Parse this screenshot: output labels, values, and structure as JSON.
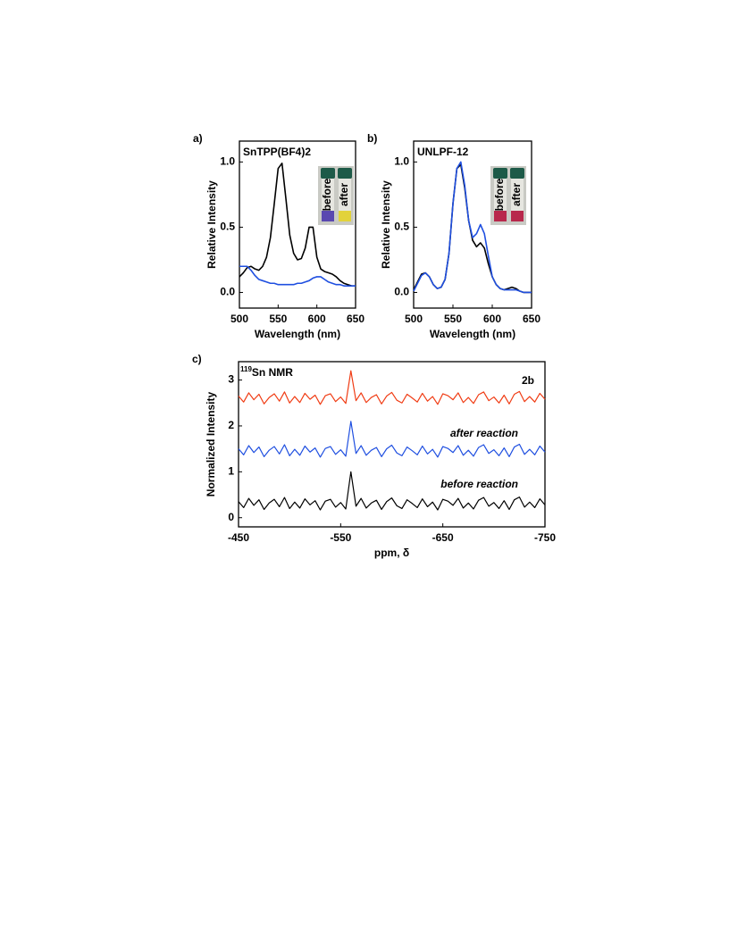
{
  "chart_data": [
    {
      "type": "line",
      "panel_label": "a)",
      "title": "SnTPP(BF4)2",
      "x_label": "Wavelength (nm)",
      "y_label": "Relative Intensity",
      "inset_labels": [
        "before",
        "after"
      ],
      "x": [
        500,
        505,
        510,
        515,
        520,
        525,
        530,
        535,
        540,
        545,
        550,
        555,
        560,
        565,
        570,
        575,
        580,
        585,
        590,
        595,
        600,
        605,
        610,
        615,
        620,
        625,
        630,
        635,
        640,
        645,
        650
      ],
      "series": [
        {
          "color": "#000000",
          "values": [
            0.12,
            0.15,
            0.19,
            0.2,
            0.18,
            0.17,
            0.2,
            0.27,
            0.42,
            0.68,
            0.95,
            0.99,
            0.72,
            0.44,
            0.3,
            0.25,
            0.26,
            0.34,
            0.5,
            0.5,
            0.27,
            0.18,
            0.16,
            0.15,
            0.14,
            0.12,
            0.09,
            0.07,
            0.06,
            0.05,
            0.05
          ]
        },
        {
          "color": "#1f4fe0",
          "values": [
            0.2,
            0.2,
            0.2,
            0.17,
            0.13,
            0.1,
            0.09,
            0.08,
            0.07,
            0.07,
            0.06,
            0.06,
            0.06,
            0.06,
            0.06,
            0.07,
            0.07,
            0.08,
            0.09,
            0.11,
            0.12,
            0.12,
            0.1,
            0.08,
            0.07,
            0.06,
            0.06,
            0.05,
            0.05,
            0.05,
            0.05
          ]
        }
      ],
      "xlim": [
        500,
        650
      ],
      "xticks": [
        500,
        550,
        600,
        650
      ],
      "ylim": [
        -0.12,
        1.16
      ],
      "yticks": [
        {
          "value": 0,
          "label": "0.0"
        },
        0.5,
        {
          "value": 1,
          "label": "1.0"
        }
      ]
    },
    {
      "type": "line",
      "panel_label": "b)",
      "title": "UNLPF-12",
      "x_label": "Wavelength (nm)",
      "y_label": "Relative Intensity",
      "inset_labels": [
        "before",
        "after"
      ],
      "x": [
        500,
        505,
        510,
        515,
        520,
        525,
        530,
        535,
        540,
        545,
        550,
        555,
        560,
        565,
        570,
        575,
        580,
        585,
        590,
        595,
        600,
        605,
        610,
        615,
        620,
        625,
        630,
        635,
        640,
        645,
        650
      ],
      "series": [
        {
          "color": "#000000",
          "values": [
            0.02,
            0.08,
            0.14,
            0.15,
            0.12,
            0.06,
            0.03,
            0.04,
            0.1,
            0.3,
            0.68,
            0.95,
            0.98,
            0.8,
            0.55,
            0.4,
            0.35,
            0.38,
            0.34,
            0.22,
            0.12,
            0.06,
            0.03,
            0.02,
            0.03,
            0.04,
            0.03,
            0.01,
            0,
            0,
            0
          ]
        },
        {
          "color": "#1f4fe0",
          "values": [
            0.01,
            0.07,
            0.13,
            0.15,
            0.12,
            0.06,
            0.03,
            0.04,
            0.1,
            0.3,
            0.68,
            0.95,
            1.0,
            0.82,
            0.55,
            0.42,
            0.45,
            0.52,
            0.45,
            0.28,
            0.12,
            0.06,
            0.03,
            0.02,
            0.02,
            0.02,
            0.02,
            0.01,
            0,
            0,
            0
          ]
        }
      ],
      "xlim": [
        500,
        650
      ],
      "xticks": [
        500,
        550,
        600,
        650
      ],
      "ylim": [
        -0.12,
        1.16
      ],
      "yticks": [
        {
          "value": 0,
          "label": "0.0"
        },
        0.5,
        {
          "value": 1,
          "label": "1.0"
        }
      ]
    },
    {
      "type": "line",
      "panel_label": "c)",
      "annotation_sup": "119",
      "annotation": "Sn NMR",
      "x_label": "ppm, δ",
      "y_label": "Normalized Intensity",
      "x": [
        -450,
        -455,
        -460,
        -465,
        -470,
        -475,
        -480,
        -485,
        -490,
        -495,
        -500,
        -505,
        -510,
        -515,
        -520,
        -525,
        -530,
        -535,
        -540,
        -545,
        -550,
        -555,
        -560,
        -565,
        -570,
        -575,
        -580,
        -585,
        -590,
        -595,
        -600,
        -605,
        -610,
        -615,
        -620,
        -625,
        -630,
        -635,
        -640,
        -645,
        -650,
        -655,
        -660,
        -665,
        -670,
        -675,
        -680,
        -685,
        -690,
        -695,
        -700,
        -705,
        -710,
        -715,
        -720,
        -725,
        -730,
        -735,
        -740,
        -745,
        -750
      ],
      "series": [
        {
          "name": "2b",
          "color": "#f03c14",
          "values": [
            2.65,
            2.52,
            2.72,
            2.57,
            2.69,
            2.48,
            2.62,
            2.7,
            2.54,
            2.74,
            2.5,
            2.64,
            2.51,
            2.71,
            2.58,
            2.67,
            2.47,
            2.66,
            2.7,
            2.53,
            2.63,
            2.49,
            3.2,
            2.55,
            2.72,
            2.51,
            2.62,
            2.68,
            2.48,
            2.65,
            2.73,
            2.56,
            2.5,
            2.69,
            2.61,
            2.52,
            2.71,
            2.54,
            2.64,
            2.47,
            2.7,
            2.66,
            2.57,
            2.72,
            2.51,
            2.62,
            2.49,
            2.68,
            2.74,
            2.55,
            2.63,
            2.5,
            2.67,
            2.48,
            2.69,
            2.75,
            2.53,
            2.64,
            2.52,
            2.71,
            2.58
          ]
        },
        {
          "name": "after reaction",
          "color": "#1f4fe0",
          "values": [
            1.5,
            1.37,
            1.57,
            1.42,
            1.54,
            1.33,
            1.47,
            1.55,
            1.39,
            1.59,
            1.35,
            1.49,
            1.36,
            1.56,
            1.43,
            1.52,
            1.32,
            1.51,
            1.55,
            1.38,
            1.48,
            1.34,
            2.1,
            1.4,
            1.57,
            1.36,
            1.47,
            1.53,
            1.33,
            1.5,
            1.58,
            1.41,
            1.35,
            1.54,
            1.46,
            1.37,
            1.56,
            1.39,
            1.49,
            1.32,
            1.55,
            1.51,
            1.42,
            1.57,
            1.36,
            1.47,
            1.34,
            1.53,
            1.59,
            1.4,
            1.48,
            1.35,
            1.52,
            1.33,
            1.54,
            1.6,
            1.38,
            1.49,
            1.37,
            1.56,
            1.43
          ]
        },
        {
          "name": "before reaction",
          "color": "#000000",
          "values": [
            0.35,
            0.22,
            0.42,
            0.27,
            0.39,
            0.18,
            0.32,
            0.4,
            0.24,
            0.44,
            0.2,
            0.34,
            0.21,
            0.41,
            0.28,
            0.37,
            0.17,
            0.36,
            0.4,
            0.23,
            0.33,
            0.19,
            1.0,
            0.25,
            0.42,
            0.21,
            0.32,
            0.38,
            0.18,
            0.35,
            0.43,
            0.26,
            0.2,
            0.39,
            0.31,
            0.22,
            0.41,
            0.24,
            0.34,
            0.17,
            0.4,
            0.36,
            0.27,
            0.42,
            0.21,
            0.32,
            0.19,
            0.38,
            0.44,
            0.25,
            0.33,
            0.2,
            0.37,
            0.18,
            0.39,
            0.45,
            0.23,
            0.34,
            0.22,
            0.41,
            0.28
          ]
        }
      ],
      "xlim": [
        -450,
        -750
      ],
      "xticks": [
        -450,
        -550,
        -650,
        -750
      ],
      "ylim": [
        -0.2,
        3.4
      ],
      "yticks": [
        0,
        1,
        2,
        3
      ]
    }
  ]
}
